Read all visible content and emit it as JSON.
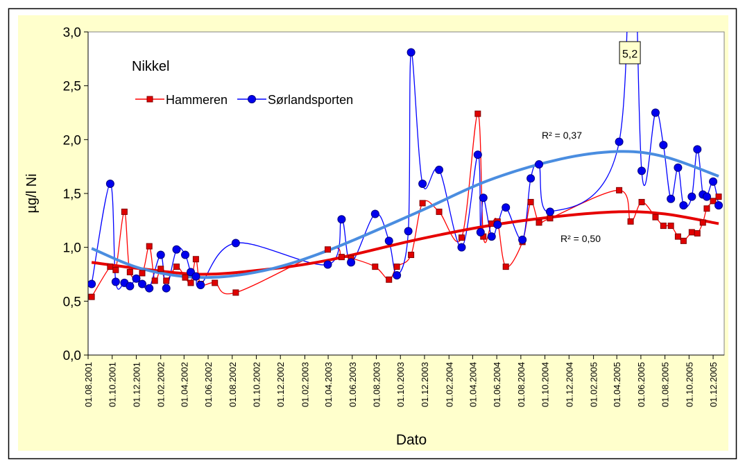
{
  "chart_data": {
    "type": "line",
    "title": "Nikkel",
    "x_label": "Dato",
    "y_label": "µg/l Ni",
    "ylim": [
      0,
      3
    ],
    "yticks": [
      {
        "value": 0,
        "label": "0,0"
      },
      {
        "value": 0.5,
        "label": "0,5"
      },
      {
        "value": 1,
        "label": "1,0"
      },
      {
        "value": 1.5,
        "label": "1,5"
      },
      {
        "value": 2,
        "label": "2,0"
      },
      {
        "value": 2.5,
        "label": "2,5"
      },
      {
        "value": 3,
        "label": "3,0"
      }
    ],
    "xlim": [
      "2001-08-01",
      "2005-12-29"
    ],
    "xticks": [
      {
        "value": "2001-08-01",
        "label": "01.08.2001"
      },
      {
        "value": "2001-10-01",
        "label": "01.10.2001"
      },
      {
        "value": "2001-12-01",
        "label": "01.12.2001"
      },
      {
        "value": "2002-02-01",
        "label": "01.02.2002"
      },
      {
        "value": "2002-04-01",
        "label": "01.04.2002"
      },
      {
        "value": "2002-06-01",
        "label": "01.06.2002"
      },
      {
        "value": "2002-08-01",
        "label": "01.08.2002"
      },
      {
        "value": "2002-10-01",
        "label": "01.10.2002"
      },
      {
        "value": "2002-12-01",
        "label": "01.12.2002"
      },
      {
        "value": "2003-02-01",
        "label": "01.02.2003"
      },
      {
        "value": "2003-04-01",
        "label": "01.04.2003"
      },
      {
        "value": "2003-06-01",
        "label": "01.06.2003"
      },
      {
        "value": "2003-08-01",
        "label": "01.08.2003"
      },
      {
        "value": "2003-10-01",
        "label": "01.10.2003"
      },
      {
        "value": "2003-12-01",
        "label": "01.12.2003"
      },
      {
        "value": "2004-02-01",
        "label": "01.02.2004"
      },
      {
        "value": "2004-04-01",
        "label": "01.04.2004"
      },
      {
        "value": "2004-06-01",
        "label": "01.06.2004"
      },
      {
        "value": "2004-08-01",
        "label": "01.08.2004"
      },
      {
        "value": "2004-10-01",
        "label": "01.10.2004"
      },
      {
        "value": "2004-12-01",
        "label": "01.12.2004"
      },
      {
        "value": "2005-02-01",
        "label": "01.02.2005"
      },
      {
        "value": "2005-04-01",
        "label": "01.04.2005"
      },
      {
        "value": "2005-06-01",
        "label": "01.06.2005"
      },
      {
        "value": "2005-08-01",
        "label": "01.08.2005"
      },
      {
        "value": "2005-10-01",
        "label": "01.10.2005"
      },
      {
        "value": "2005-12-01",
        "label": "01.12.2005"
      }
    ],
    "series": [
      {
        "name": "Hammeren",
        "color": "#ff0000",
        "marker": "square",
        "marker_color": "#e00000",
        "x": [
          "2001-08-10",
          "2001-09-26",
          "2001-10-10",
          "2001-11-01",
          "2001-11-15",
          "2001-12-16",
          "2002-01-03",
          "2002-01-17",
          "2002-02-01",
          "2002-02-15",
          "2002-03-13",
          "2002-04-04",
          "2002-04-18",
          "2002-05-01",
          "2002-05-13",
          "2002-06-18",
          "2002-08-10",
          "2003-03-31",
          "2003-05-05",
          "2003-05-29",
          "2003-07-29",
          "2003-09-02",
          "2003-09-22",
          "2003-10-28",
          "2003-11-26",
          "2004-01-07",
          "2004-03-04",
          "2004-04-14",
          "2004-04-28",
          "2004-05-19",
          "2004-06-03",
          "2004-06-24",
          "2004-08-05",
          "2004-08-26",
          "2004-09-16",
          "2004-10-14",
          "2005-04-07",
          "2005-05-06",
          "2005-06-03",
          "2005-07-08",
          "2005-07-28",
          "2005-08-16",
          "2005-09-03",
          "2005-09-17",
          "2005-10-08",
          "2005-10-22",
          "2005-11-05",
          "2005-11-15",
          "2005-12-01",
          "2005-12-15"
        ],
        "values": [
          0.54,
          0.82,
          0.79,
          1.33,
          0.77,
          0.76,
          1.01,
          0.69,
          0.8,
          0.69,
          0.82,
          0.72,
          0.67,
          0.89,
          0.66,
          0.67,
          0.58,
          0.98,
          0.91,
          0.9,
          0.82,
          0.7,
          0.82,
          0.93,
          1.41,
          1.33,
          1.09,
          2.24,
          1.1,
          1.22,
          1.24,
          0.82,
          1.05,
          1.42,
          1.23,
          1.27,
          1.53,
          1.24,
          1.42,
          1.28,
          1.2,
          1.2,
          1.1,
          1.06,
          1.14,
          1.13,
          1.23,
          1.36,
          1.43,
          1.47
        ],
        "trend": {
          "color": "#e60000",
          "label": "R² = 0,50",
          "x": [
            "2001-08-10",
            "2001-12-16",
            "2002-05-13",
            "2002-10-15",
            "2003-03-31",
            "2003-11-10",
            "2004-05-10",
            "2004-11-10",
            "2005-04-07",
            "2005-08-01",
            "2005-12-15"
          ],
          "values": [
            0.86,
            0.8,
            0.75,
            0.79,
            0.88,
            1.07,
            1.2,
            1.29,
            1.33,
            1.31,
            1.22
          ]
        }
      },
      {
        "name": "Sørlandsporten",
        "color": "#0000ff",
        "marker": "circle",
        "marker_color": "#0000ee",
        "x": [
          "2001-08-10",
          "2001-09-26",
          "2001-10-10",
          "2001-11-01",
          "2001-11-15",
          "2001-12-01",
          "2001-12-16",
          "2002-01-03",
          "2002-02-01",
          "2002-02-15",
          "2002-03-13",
          "2002-04-04",
          "2002-04-18",
          "2002-05-01",
          "2002-05-13",
          "2002-08-10",
          "2003-03-31",
          "2003-05-05",
          "2003-05-29",
          "2003-07-29",
          "2003-09-02",
          "2003-09-22",
          "2003-10-21",
          "2003-10-28",
          "2003-11-26",
          "2004-01-07",
          "2004-03-04",
          "2004-04-14",
          "2004-04-21",
          "2004-04-28",
          "2004-05-19",
          "2004-06-03",
          "2004-06-24",
          "2004-08-05",
          "2004-08-26",
          "2004-09-16",
          "2004-10-14",
          "2005-04-07",
          "2005-05-06",
          "2005-06-03",
          "2005-07-08",
          "2005-07-28",
          "2005-08-16",
          "2005-09-03",
          "2005-09-17",
          "2005-10-08",
          "2005-10-22",
          "2005-11-05",
          "2005-11-15",
          "2005-12-01",
          "2005-12-15"
        ],
        "values": [
          0.66,
          1.59,
          0.68,
          0.67,
          0.64,
          0.71,
          0.66,
          0.62,
          0.93,
          0.62,
          0.98,
          0.93,
          0.77,
          0.73,
          0.65,
          1.04,
          0.84,
          1.26,
          0.86,
          1.31,
          1.06,
          0.74,
          1.15,
          2.81,
          1.59,
          1.72,
          1.0,
          1.86,
          1.14,
          1.46,
          1.1,
          1.21,
          1.37,
          1.07,
          1.64,
          1.77,
          1.33,
          1.98,
          5.2,
          1.71,
          2.25,
          1.95,
          1.45,
          1.74,
          1.39,
          1.47,
          1.91,
          1.49,
          1.47,
          1.61,
          1.39
        ],
        "value_labels": [
          null,
          null,
          null,
          null,
          null,
          null,
          null,
          null,
          null,
          null,
          null,
          null,
          null,
          null,
          null,
          null,
          null,
          null,
          null,
          null,
          null,
          null,
          null,
          null,
          null,
          null,
          null,
          null,
          null,
          null,
          null,
          null,
          null,
          null,
          null,
          null,
          null,
          null,
          "5,2",
          null,
          null,
          null,
          null,
          null,
          null,
          null,
          null,
          null,
          null,
          null,
          null
        ],
        "trend": {
          "color": "#4a8de0",
          "label": "R² = 0,37",
          "x": [
            "2001-08-10",
            "2001-12-16",
            "2002-05-13",
            "2002-10-15",
            "2003-03-31",
            "2003-11-10",
            "2004-05-10",
            "2004-11-10",
            "2005-04-07",
            "2005-08-01",
            "2005-12-15"
          ],
          "values": [
            0.99,
            0.8,
            0.72,
            0.78,
            0.97,
            1.32,
            1.62,
            1.82,
            1.89,
            1.84,
            1.66
          ]
        }
      }
    ]
  }
}
